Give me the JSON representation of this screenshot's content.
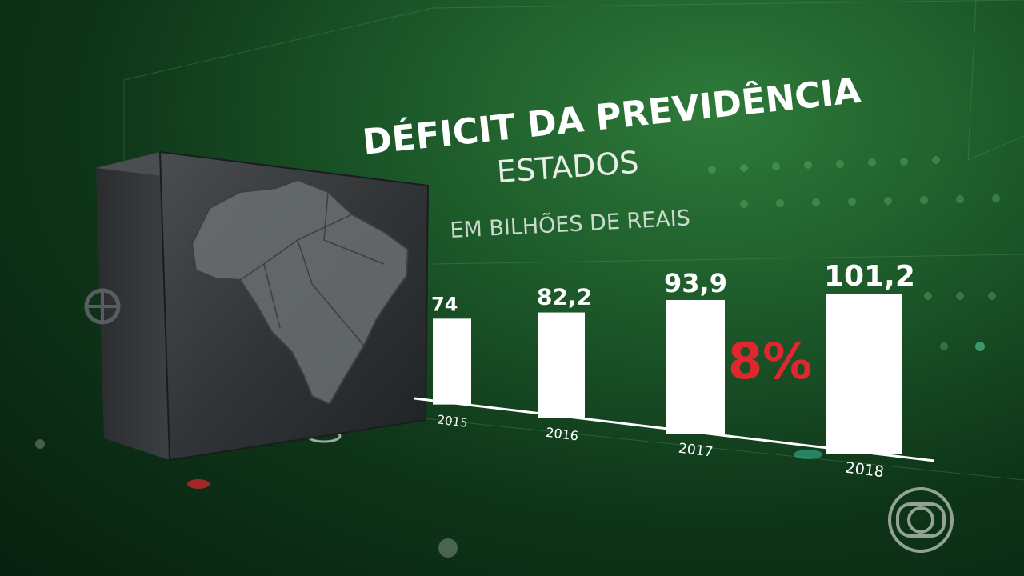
{
  "chart_data": {
    "type": "bar",
    "title": "DÉFICIT DA PREVIDÊNCIA",
    "subtitle": "ESTADOS",
    "unit_label": "EM BILHÕES DE REAIS",
    "categories": [
      "2015",
      "2016",
      "2017",
      "2018"
    ],
    "values": [
      74,
      82.2,
      93.9,
      101.2
    ],
    "value_labels": [
      "74",
      "82,2",
      "93,9",
      "101,2"
    ],
    "annotation": "8%",
    "annotation_color": "#e0262f",
    "bar_color": "#ffffff",
    "grid": false
  },
  "logo": {
    "icon": "tv-globo-logo"
  }
}
